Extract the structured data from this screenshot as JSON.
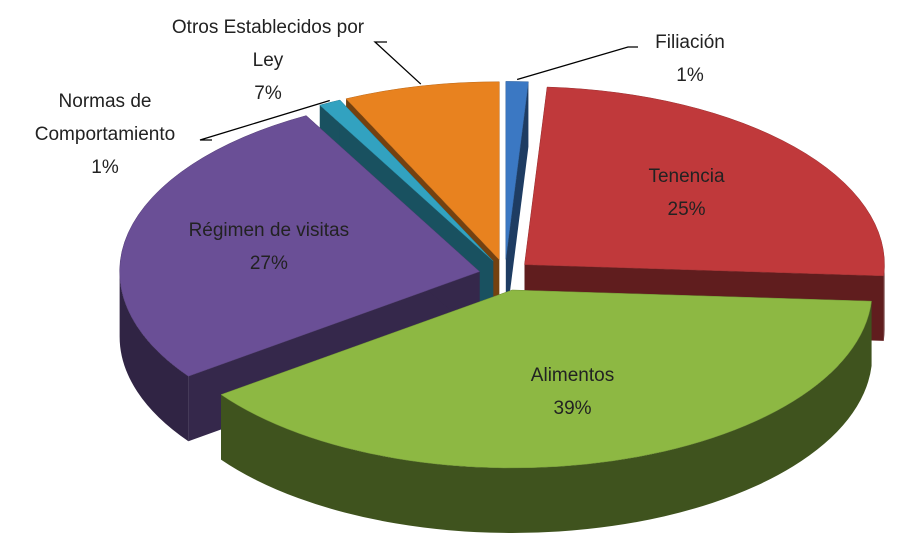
{
  "chart_data": {
    "type": "pie",
    "categories": [
      "Filiación",
      "Tenencia",
      "Alimentos",
      "Régimen de visitas",
      "Normas de Comportamiento",
      "Otros Establecidos por Ley"
    ],
    "values": [
      1,
      25,
      39,
      27,
      1,
      7
    ],
    "value_labels": [
      "1%",
      "25%",
      "39%",
      "27%",
      "1%",
      "7%"
    ],
    "colors": [
      "#3b78c3",
      "#c0393b",
      "#8db843",
      "#6a4f96",
      "#32a2c0",
      "#e8821f"
    ]
  }
}
